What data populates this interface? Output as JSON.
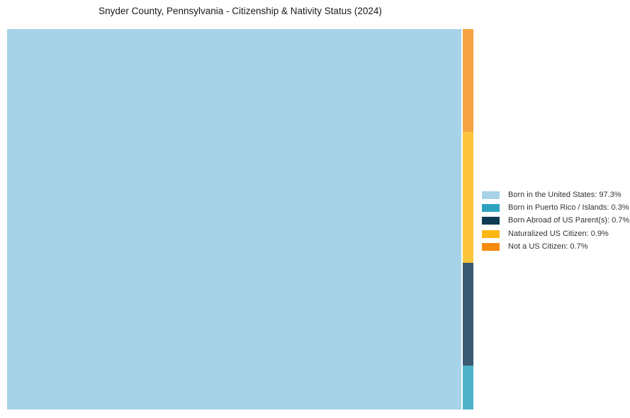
{
  "title": "Snyder County, Pennsylvania - Citizenship & Nativity Status (2024)",
  "chart_data": {
    "type": "treemap",
    "title": "Snyder County, Pennsylvania - Citizenship & Nativity Status (2024)",
    "unit": "percent",
    "legend_position": "right",
    "background_color": "#ffffff",
    "segments": [
      {
        "id": "born-in-us",
        "label": "Born in the United States",
        "value": 97.3,
        "legend_label": "Born in the United States: 97.3%",
        "tile_color": "#a7d3e9",
        "legend_color": "#a7d2e8",
        "region": "main"
      },
      {
        "id": "born-puerto-rico-islands",
        "label": "Born in Puerto Rico / Islands",
        "value": 0.3,
        "legend_label": "Born in Puerto Rico / Islands: 0.3%",
        "tile_color": "#4db2c8",
        "legend_color": "#2ba3c0",
        "region": "column-bottom"
      },
      {
        "id": "born-abroad-us-parents",
        "label": "Born Abroad of US Parent(s)",
        "value": 0.7,
        "legend_label": "Born Abroad of US Parent(s): 0.7%",
        "tile_color": "#3b5a71",
        "legend_color": "#0e3a53",
        "region": "column"
      },
      {
        "id": "naturalized-us-citizen",
        "label": "Naturalized US Citizen",
        "value": 0.9,
        "legend_label": "Naturalized US Citizen: 0.9%",
        "tile_color": "#fdc53c",
        "legend_color": "#fdb713",
        "region": "column"
      },
      {
        "id": "not-a-us-citizen",
        "label": "Not a US Citizen",
        "value": 0.7,
        "legend_label": "Not a US Citizen: 0.7%",
        "tile_color": "#f8a343",
        "legend_color": "#f68b11",
        "region": "column-top"
      }
    ]
  }
}
